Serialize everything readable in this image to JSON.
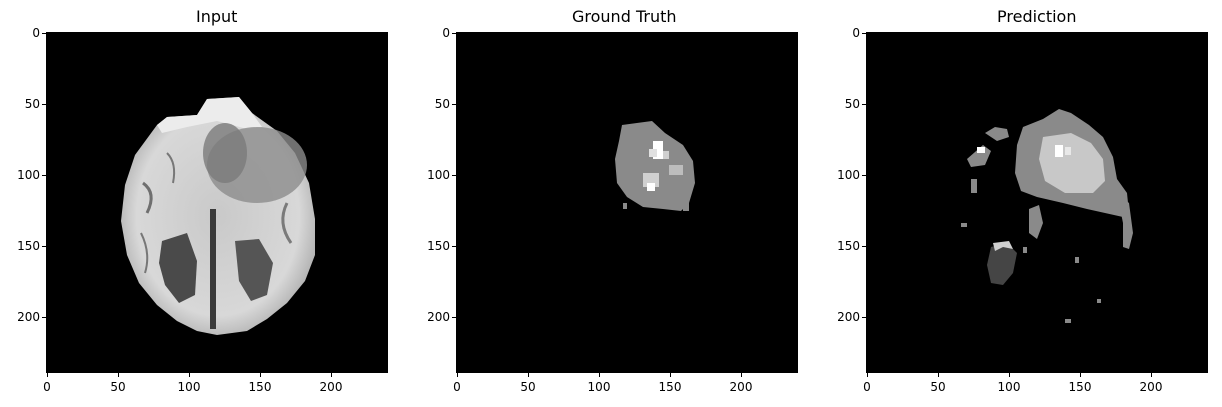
{
  "panels": [
    {
      "title": "Input",
      "image": "brain-mri-axial-slice",
      "yticks": [
        "0",
        "50",
        "100",
        "150",
        "200"
      ],
      "xticks": [
        "0",
        "50",
        "100",
        "150",
        "200"
      ]
    },
    {
      "title": "Ground Truth",
      "image": "tumor-segmentation-mask",
      "yticks": [
        "0",
        "50",
        "100",
        "150",
        "200"
      ],
      "xticks": [
        "0",
        "50",
        "100",
        "150",
        "200"
      ]
    },
    {
      "title": "Prediction",
      "image": "predicted-segmentation-mask",
      "yticks": [
        "0",
        "50",
        "100",
        "150",
        "200"
      ],
      "xticks": [
        "0",
        "50",
        "100",
        "150",
        "200"
      ]
    }
  ],
  "colors": {
    "background": "#000000",
    "mask_light_gray": "#8a8a8a",
    "mask_bright": "#c8c8c8",
    "mask_white": "#ffffff",
    "mask_dark": "#454545"
  }
}
